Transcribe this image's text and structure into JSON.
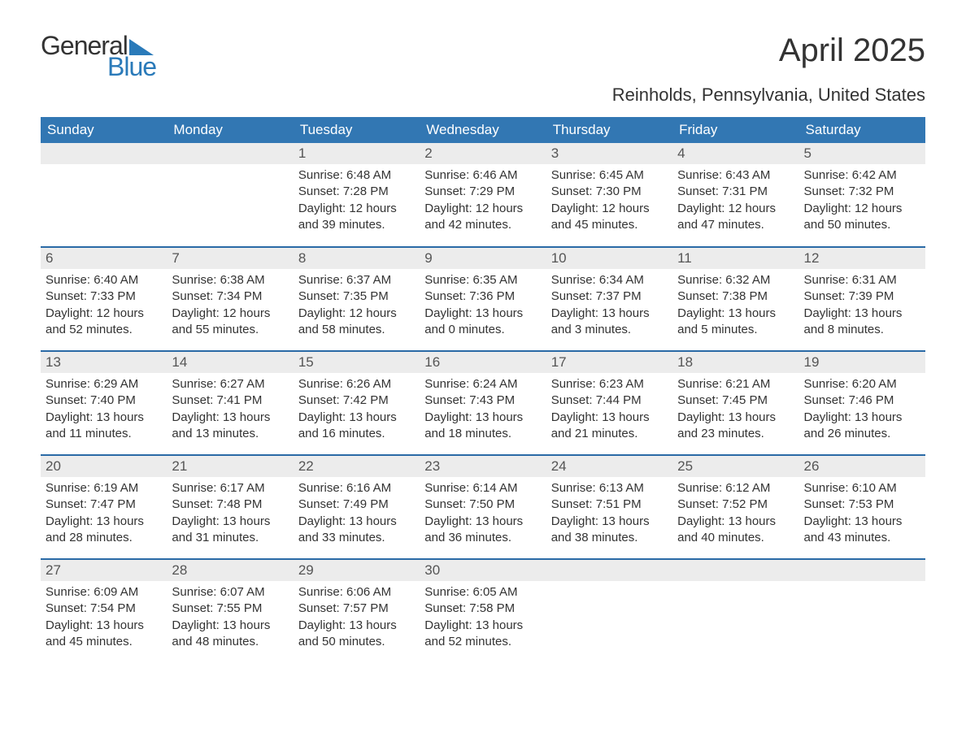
{
  "logo": {
    "general": "General",
    "blue": "Blue",
    "tri_color": "#2a7ab9"
  },
  "title": "April 2025",
  "location": "Reinholds, Pennsylvania, United States",
  "colors": {
    "header_bg": "#3277b3",
    "header_text": "#ffffff",
    "row_accent": "#2a6aa6",
    "daynum_bg": "#ececec",
    "daynum_text": "#555555",
    "body_text": "#333333",
    "page_bg": "#ffffff"
  },
  "week_headers": [
    "Sunday",
    "Monday",
    "Tuesday",
    "Wednesday",
    "Thursday",
    "Friday",
    "Saturday"
  ],
  "weeks": [
    [
      {
        "n": "",
        "sunrise": "",
        "sunset": "",
        "daylight1": "",
        "daylight2": ""
      },
      {
        "n": "",
        "sunrise": "",
        "sunset": "",
        "daylight1": "",
        "daylight2": ""
      },
      {
        "n": "1",
        "sunrise": "Sunrise: 6:48 AM",
        "sunset": "Sunset: 7:28 PM",
        "daylight1": "Daylight: 12 hours",
        "daylight2": "and 39 minutes."
      },
      {
        "n": "2",
        "sunrise": "Sunrise: 6:46 AM",
        "sunset": "Sunset: 7:29 PM",
        "daylight1": "Daylight: 12 hours",
        "daylight2": "and 42 minutes."
      },
      {
        "n": "3",
        "sunrise": "Sunrise: 6:45 AM",
        "sunset": "Sunset: 7:30 PM",
        "daylight1": "Daylight: 12 hours",
        "daylight2": "and 45 minutes."
      },
      {
        "n": "4",
        "sunrise": "Sunrise: 6:43 AM",
        "sunset": "Sunset: 7:31 PM",
        "daylight1": "Daylight: 12 hours",
        "daylight2": "and 47 minutes."
      },
      {
        "n": "5",
        "sunrise": "Sunrise: 6:42 AM",
        "sunset": "Sunset: 7:32 PM",
        "daylight1": "Daylight: 12 hours",
        "daylight2": "and 50 minutes."
      }
    ],
    [
      {
        "n": "6",
        "sunrise": "Sunrise: 6:40 AM",
        "sunset": "Sunset: 7:33 PM",
        "daylight1": "Daylight: 12 hours",
        "daylight2": "and 52 minutes."
      },
      {
        "n": "7",
        "sunrise": "Sunrise: 6:38 AM",
        "sunset": "Sunset: 7:34 PM",
        "daylight1": "Daylight: 12 hours",
        "daylight2": "and 55 minutes."
      },
      {
        "n": "8",
        "sunrise": "Sunrise: 6:37 AM",
        "sunset": "Sunset: 7:35 PM",
        "daylight1": "Daylight: 12 hours",
        "daylight2": "and 58 minutes."
      },
      {
        "n": "9",
        "sunrise": "Sunrise: 6:35 AM",
        "sunset": "Sunset: 7:36 PM",
        "daylight1": "Daylight: 13 hours",
        "daylight2": "and 0 minutes."
      },
      {
        "n": "10",
        "sunrise": "Sunrise: 6:34 AM",
        "sunset": "Sunset: 7:37 PM",
        "daylight1": "Daylight: 13 hours",
        "daylight2": "and 3 minutes."
      },
      {
        "n": "11",
        "sunrise": "Sunrise: 6:32 AM",
        "sunset": "Sunset: 7:38 PM",
        "daylight1": "Daylight: 13 hours",
        "daylight2": "and 5 minutes."
      },
      {
        "n": "12",
        "sunrise": "Sunrise: 6:31 AM",
        "sunset": "Sunset: 7:39 PM",
        "daylight1": "Daylight: 13 hours",
        "daylight2": "and 8 minutes."
      }
    ],
    [
      {
        "n": "13",
        "sunrise": "Sunrise: 6:29 AM",
        "sunset": "Sunset: 7:40 PM",
        "daylight1": "Daylight: 13 hours",
        "daylight2": "and 11 minutes."
      },
      {
        "n": "14",
        "sunrise": "Sunrise: 6:27 AM",
        "sunset": "Sunset: 7:41 PM",
        "daylight1": "Daylight: 13 hours",
        "daylight2": "and 13 minutes."
      },
      {
        "n": "15",
        "sunrise": "Sunrise: 6:26 AM",
        "sunset": "Sunset: 7:42 PM",
        "daylight1": "Daylight: 13 hours",
        "daylight2": "and 16 minutes."
      },
      {
        "n": "16",
        "sunrise": "Sunrise: 6:24 AM",
        "sunset": "Sunset: 7:43 PM",
        "daylight1": "Daylight: 13 hours",
        "daylight2": "and 18 minutes."
      },
      {
        "n": "17",
        "sunrise": "Sunrise: 6:23 AM",
        "sunset": "Sunset: 7:44 PM",
        "daylight1": "Daylight: 13 hours",
        "daylight2": "and 21 minutes."
      },
      {
        "n": "18",
        "sunrise": "Sunrise: 6:21 AM",
        "sunset": "Sunset: 7:45 PM",
        "daylight1": "Daylight: 13 hours",
        "daylight2": "and 23 minutes."
      },
      {
        "n": "19",
        "sunrise": "Sunrise: 6:20 AM",
        "sunset": "Sunset: 7:46 PM",
        "daylight1": "Daylight: 13 hours",
        "daylight2": "and 26 minutes."
      }
    ],
    [
      {
        "n": "20",
        "sunrise": "Sunrise: 6:19 AM",
        "sunset": "Sunset: 7:47 PM",
        "daylight1": "Daylight: 13 hours",
        "daylight2": "and 28 minutes."
      },
      {
        "n": "21",
        "sunrise": "Sunrise: 6:17 AM",
        "sunset": "Sunset: 7:48 PM",
        "daylight1": "Daylight: 13 hours",
        "daylight2": "and 31 minutes."
      },
      {
        "n": "22",
        "sunrise": "Sunrise: 6:16 AM",
        "sunset": "Sunset: 7:49 PM",
        "daylight1": "Daylight: 13 hours",
        "daylight2": "and 33 minutes."
      },
      {
        "n": "23",
        "sunrise": "Sunrise: 6:14 AM",
        "sunset": "Sunset: 7:50 PM",
        "daylight1": "Daylight: 13 hours",
        "daylight2": "and 36 minutes."
      },
      {
        "n": "24",
        "sunrise": "Sunrise: 6:13 AM",
        "sunset": "Sunset: 7:51 PM",
        "daylight1": "Daylight: 13 hours",
        "daylight2": "and 38 minutes."
      },
      {
        "n": "25",
        "sunrise": "Sunrise: 6:12 AM",
        "sunset": "Sunset: 7:52 PM",
        "daylight1": "Daylight: 13 hours",
        "daylight2": "and 40 minutes."
      },
      {
        "n": "26",
        "sunrise": "Sunrise: 6:10 AM",
        "sunset": "Sunset: 7:53 PM",
        "daylight1": "Daylight: 13 hours",
        "daylight2": "and 43 minutes."
      }
    ],
    [
      {
        "n": "27",
        "sunrise": "Sunrise: 6:09 AM",
        "sunset": "Sunset: 7:54 PM",
        "daylight1": "Daylight: 13 hours",
        "daylight2": "and 45 minutes."
      },
      {
        "n": "28",
        "sunrise": "Sunrise: 6:07 AM",
        "sunset": "Sunset: 7:55 PM",
        "daylight1": "Daylight: 13 hours",
        "daylight2": "and 48 minutes."
      },
      {
        "n": "29",
        "sunrise": "Sunrise: 6:06 AM",
        "sunset": "Sunset: 7:57 PM",
        "daylight1": "Daylight: 13 hours",
        "daylight2": "and 50 minutes."
      },
      {
        "n": "30",
        "sunrise": "Sunrise: 6:05 AM",
        "sunset": "Sunset: 7:58 PM",
        "daylight1": "Daylight: 13 hours",
        "daylight2": "and 52 minutes."
      },
      {
        "n": "",
        "sunrise": "",
        "sunset": "",
        "daylight1": "",
        "daylight2": ""
      },
      {
        "n": "",
        "sunrise": "",
        "sunset": "",
        "daylight1": "",
        "daylight2": ""
      },
      {
        "n": "",
        "sunrise": "",
        "sunset": "",
        "daylight1": "",
        "daylight2": ""
      }
    ]
  ]
}
